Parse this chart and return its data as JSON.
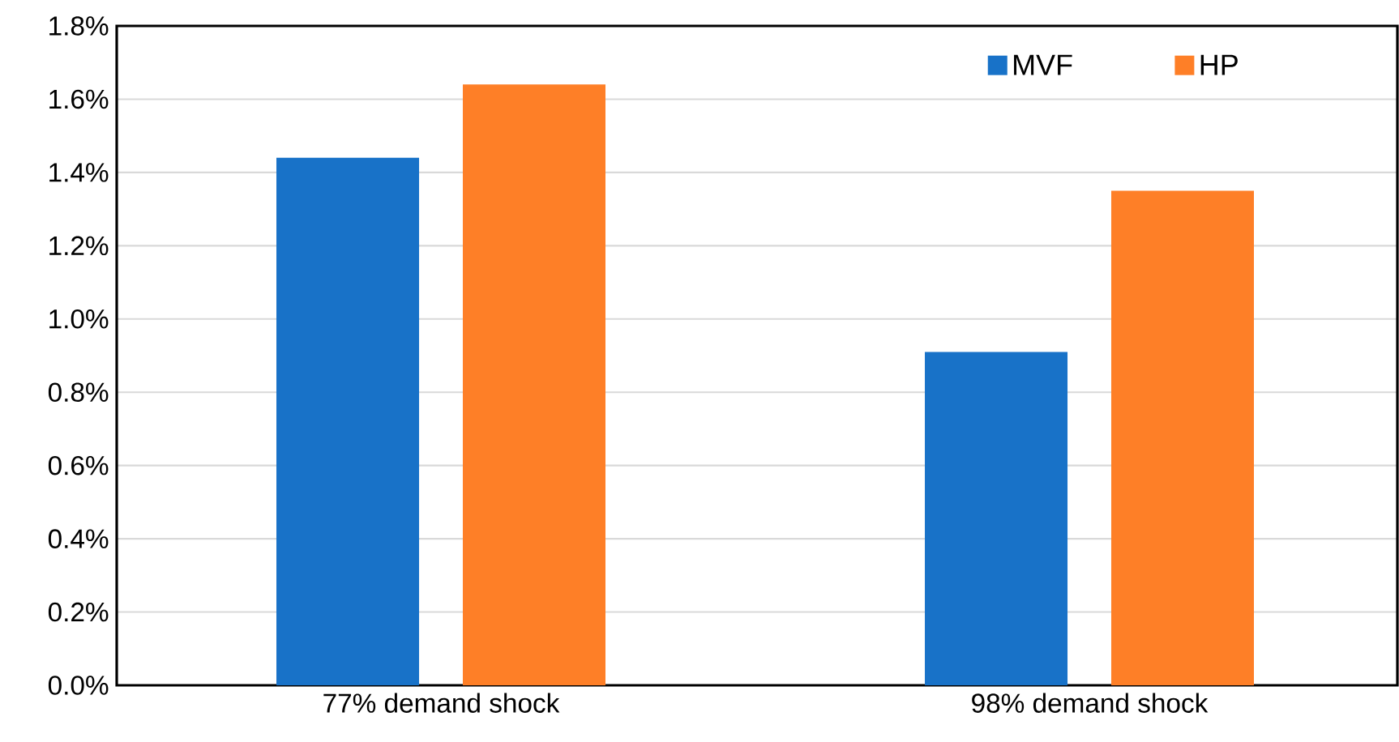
{
  "chart_data": {
    "type": "bar",
    "categories": [
      "77% demand shock",
      "98% demand shock"
    ],
    "series": [
      {
        "name": "MVF",
        "color": "#1872c8",
        "values": [
          1.44,
          0.91
        ]
      },
      {
        "name": "HP",
        "color": "#fe7f27",
        "values": [
          1.64,
          1.35
        ]
      }
    ],
    "ylim": [
      0,
      1.8
    ],
    "yticks": [
      {
        "value": 0,
        "label": "0.0%"
      },
      {
        "value": 0.2,
        "label": "0.2%"
      },
      {
        "value": 0.4,
        "label": "0.4%"
      },
      {
        "value": 0.6,
        "label": "0.6%"
      },
      {
        "value": 0.8,
        "label": "0.8%"
      },
      {
        "value": 1.0,
        "label": "1.0%"
      },
      {
        "value": 1.2,
        "label": "1.2%"
      },
      {
        "value": 1.4,
        "label": "1.4%"
      },
      {
        "value": 1.6,
        "label": "1.6%"
      },
      {
        "value": 1.8,
        "label": "1.8%"
      }
    ],
    "grid": "y",
    "legend": "top right"
  }
}
